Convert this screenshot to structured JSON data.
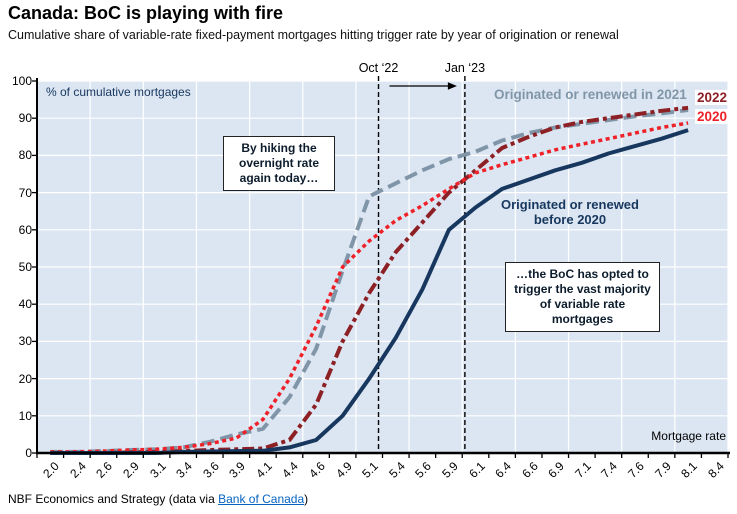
{
  "header": {
    "title": "Canada: BoC is playing with fire",
    "subtitle": "Cumulative share of variable-rate fixed-payment mortgages hitting trigger rate by year of origination or renewal"
  },
  "footer": {
    "text_before": "NBF Economics and Strategy (data via ",
    "link_label": "Bank of Canada",
    "text_after": ")"
  },
  "chart_data": {
    "type": "line",
    "title": "Canada: BoC is playing with fire",
    "unit_label": "% of cumulative mortgages",
    "xlabel": "Mortgage rate",
    "ylim": [
      0,
      100
    ],
    "yticks": [
      100,
      90,
      80,
      70,
      60,
      50,
      40,
      30,
      20,
      10,
      0
    ],
    "grid": {
      "color": "#ffffff",
      "x_every_categories": 2,
      "plot_background": "#dce6f2"
    },
    "categories": [
      "2.0",
      "2.4",
      "2.6",
      "2.9",
      "3.1",
      "3.4",
      "3.6",
      "3.9",
      "4.1",
      "4.4",
      "4.6",
      "4.9",
      "5.1",
      "5.4",
      "5.6",
      "5.9",
      "6.1",
      "6.4",
      "6.6",
      "6.9",
      "7.1",
      "7.4",
      "7.6",
      "7.9",
      "8.1",
      "8.4"
    ],
    "series": [
      {
        "name": "Originated or renewed in 2021",
        "color": "#8096a8",
        "dash": "13 6",
        "width": 4,
        "values": [
          0.3,
          0.3,
          0.5,
          0.8,
          1,
          1.5,
          3,
          5,
          6.5,
          15,
          28,
          49,
          69,
          72.5,
          76,
          79,
          81,
          84,
          86,
          87.5,
          88.5,
          89.5,
          90.5,
          91.3,
          92.2,
          null
        ]
      },
      {
        "name": "2022",
        "color": "#8d2024",
        "dash": "12 4 4 4",
        "width": 4,
        "values": [
          0,
          0,
          0,
          0.2,
          0.3,
          0.5,
          0.8,
          1,
          1.2,
          3.5,
          13,
          30,
          43,
          54,
          62,
          70,
          76,
          82,
          85,
          87.5,
          89,
          90,
          91,
          92,
          92.8,
          null
        ]
      },
      {
        "name": "2020",
        "color": "#ee2129",
        "dash": "4 3.5",
        "width": 3.5,
        "values": [
          0.3,
          0.3,
          0.5,
          0.8,
          1,
          1.5,
          2.5,
          4,
          9,
          20,
          34,
          50,
          57,
          62.5,
          66.5,
          71,
          75.3,
          77.5,
          79.5,
          81.5,
          83,
          84.5,
          86,
          87.5,
          88.7,
          null
        ]
      },
      {
        "name": "Originated or renewed before 2020",
        "color": "#17375e",
        "dash": "",
        "width": 4,
        "values": [
          0,
          0,
          0,
          0,
          0,
          0.3,
          0.4,
          0.5,
          0.6,
          1.5,
          3.5,
          10,
          20,
          31,
          44,
          60,
          66,
          71,
          73.5,
          76,
          78,
          80.5,
          82.5,
          84.5,
          86.8,
          null
        ]
      }
    ],
    "event_lines": [
      {
        "label": "Oct ‘22",
        "x_center_index": 12.35
      },
      {
        "label": "Jan ‘23",
        "x_center_index": 15.6
      }
    ],
    "annotations": [
      {
        "text": "By hiking the overnight rate again today…"
      },
      {
        "text": "…the BoC has opted to trigger the vast majority of variable rate mortgages"
      }
    ]
  }
}
